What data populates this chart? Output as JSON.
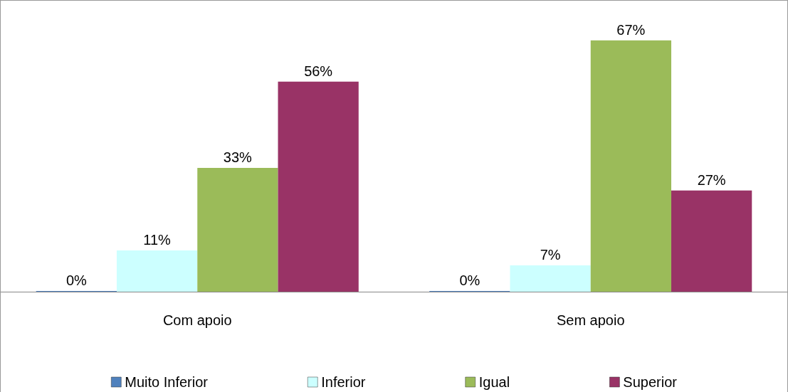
{
  "chart_data": {
    "type": "bar",
    "categories": [
      "Com apoio",
      "Sem apoio"
    ],
    "series": [
      {
        "name": "Muito Inferior",
        "color": "#4f81bd",
        "values": [
          0,
          0
        ],
        "value_labels": [
          "0%",
          "0%"
        ]
      },
      {
        "name": "Inferior",
        "color": "#ccffff",
        "values": [
          11,
          7
        ],
        "value_labels": [
          "11%",
          "7%"
        ]
      },
      {
        "name": "Igual",
        "color": "#9bbb59",
        "values": [
          33,
          67
        ],
        "value_labels": [
          "33%",
          "67%"
        ]
      },
      {
        "name": "Superior",
        "color": "#993366",
        "values": [
          56,
          27
        ],
        "value_labels": [
          "56%",
          "27%"
        ]
      }
    ],
    "legend": "bottom"
  }
}
